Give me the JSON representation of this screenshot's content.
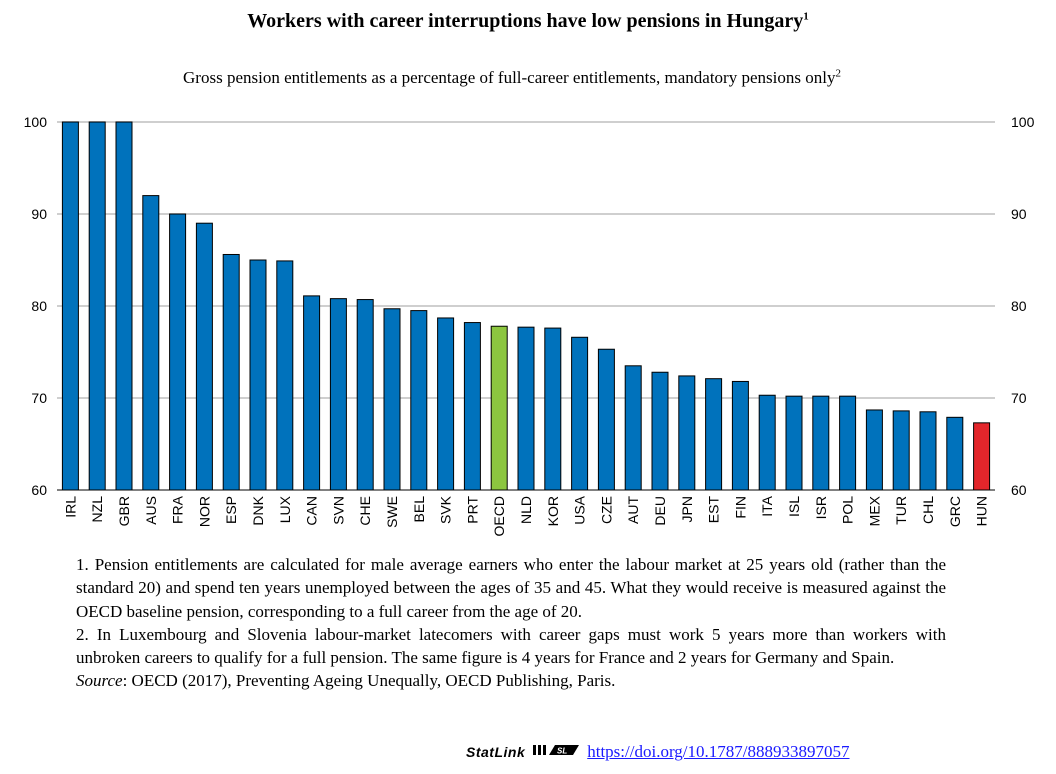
{
  "chart_data": {
    "type": "bar",
    "title": "Workers with career interruptions have low pensions in Hungary",
    "title_sup": "1",
    "subtitle": "Gross pension entitlements as a percentage of full-career entitlements, mandatory pensions only",
    "subtitle_sup": "2",
    "categories": [
      "IRL",
      "NZL",
      "GBR",
      "AUS",
      "FRA",
      "NOR",
      "ESP",
      "DNK",
      "LUX",
      "CAN",
      "SVN",
      "CHE",
      "SWE",
      "BEL",
      "SVK",
      "PRT",
      "OECD",
      "NLD",
      "KOR",
      "USA",
      "CZE",
      "AUT",
      "DEU",
      "JPN",
      "EST",
      "FIN",
      "ITA",
      "ISL",
      "ISR",
      "POL",
      "MEX",
      "TUR",
      "CHL",
      "GRC",
      "HUN"
    ],
    "values": [
      100,
      100,
      100,
      92,
      90,
      89,
      85.6,
      85,
      84.9,
      81.1,
      80.8,
      80.7,
      79.7,
      79.5,
      78.7,
      78.2,
      77.8,
      77.7,
      77.6,
      76.6,
      75.3,
      73.5,
      72.8,
      72.4,
      72.1,
      71.8,
      70.3,
      70.2,
      70.2,
      70.2,
      68.7,
      68.6,
      68.5,
      67.9,
      67.3
    ],
    "colors": {
      "default": "#0072BC",
      "highlight_oecd": "#8CC63F",
      "highlight_hun": "#E3262B",
      "gridline": "#BFBFBF",
      "outline": "#000000"
    },
    "highlight": {
      "OECD": "highlight_oecd",
      "HUN": "highlight_hun"
    },
    "ylim": [
      60,
      100
    ],
    "yticks": [
      60,
      70,
      80,
      90,
      100
    ],
    "xlabel": "",
    "ylabel": "",
    "grid": true
  },
  "notes": {
    "note1": "1. Pension entitlements are calculated for male average earners who enter the labour market at 25 years old (rather than the standard 20) and spend ten years unemployed between the ages of 35 and 45. What they would receive is measured against the OECD baseline pension, corresponding to a full career from the age of 20.",
    "note2": "2. In Luxembourg and Slovenia labour-market latecomers with career gaps must work 5 years more than workers with unbroken careers to qualify for a full pension. The same figure is 4 years for France and 2 years for Germany and Spain.",
    "source_label": "Source",
    "source_text": ": OECD (2017), Preventing Ageing Unequally, OECD Publishing, Paris."
  },
  "statlink": {
    "label": "StatLink",
    "url_text": "https://doi.org/10.1787/888933897057",
    "icon": "statlink-logo-icon"
  }
}
